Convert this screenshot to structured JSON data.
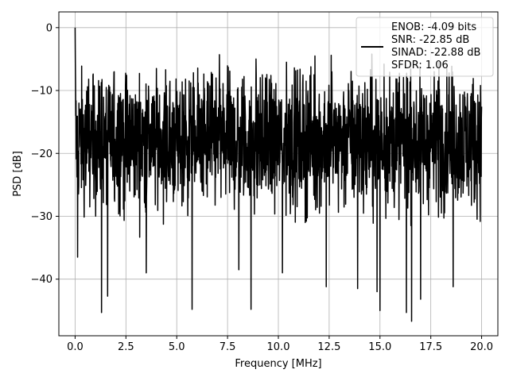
{
  "chart_data": {
    "type": "line",
    "title": "",
    "xlabel": "Frequency [MHz]",
    "ylabel": "PSD [dB]",
    "xlim": [
      -0.8,
      20.8
    ],
    "ylim": [
      -49,
      2.5
    ],
    "x_ticks": [
      0.0,
      2.5,
      5.0,
      7.5,
      10.0,
      12.5,
      15.0,
      17.5,
      20.0
    ],
    "x_tick_labels": [
      "0.0",
      "2.5",
      "5.0",
      "7.5",
      "10.0",
      "12.5",
      "15.0",
      "17.5",
      "20.0"
    ],
    "y_ticks": [
      0,
      -10,
      -20,
      -30,
      -40
    ],
    "y_tick_labels": [
      "0",
      "−10",
      "−20",
      "−30",
      "−40"
    ],
    "grid": true,
    "legend_position": "top-right",
    "line_color": "#000000",
    "series": [
      {
        "name": "ENOB: -4.09 bits\nSNR: -22.85 dB\nSINAD: -22.88 dB\nSFDR: 1.06",
        "legend_lines": [
          "ENOB: -4.09 bits",
          "SNR: -22.85 dB",
          "SINAD: -22.88 dB",
          "SFDR: 1.06"
        ],
        "x_range": [
          0.0,
          20.0
        ],
        "peak": {
          "x": 0.0,
          "y": 0.0
        },
        "envelope": {
          "upper": -7,
          "median": -18,
          "lower": -28
        },
        "minima": [
          {
            "x": 0.12,
            "y": -36.5
          },
          {
            "x": 1.3,
            "y": -45.3
          },
          {
            "x": 1.6,
            "y": -42.7
          },
          {
            "x": 3.5,
            "y": -39.0
          },
          {
            "x": 5.75,
            "y": -44.8
          },
          {
            "x": 8.05,
            "y": -38.5
          },
          {
            "x": 8.65,
            "y": -44.8
          },
          {
            "x": 10.2,
            "y": -39.0
          },
          {
            "x": 12.35,
            "y": -41.2
          },
          {
            "x": 13.9,
            "y": -41.5
          },
          {
            "x": 14.85,
            "y": -42.0
          },
          {
            "x": 15.0,
            "y": -45.0
          },
          {
            "x": 16.3,
            "y": -45.3
          },
          {
            "x": 16.55,
            "y": -46.7
          },
          {
            "x": 17.0,
            "y": -43.2
          },
          {
            "x": 18.6,
            "y": -41.2
          }
        ],
        "maxima": [
          {
            "x": 4.0,
            "y": -6.5
          },
          {
            "x": 7.1,
            "y": -4.3
          },
          {
            "x": 8.9,
            "y": -5.0
          },
          {
            "x": 10.4,
            "y": -5.5
          },
          {
            "x": 11.8,
            "y": -4.5
          },
          {
            "x": 12.6,
            "y": -4.4
          },
          {
            "x": 14.6,
            "y": -4.2
          },
          {
            "x": 15.2,
            "y": -5.8
          },
          {
            "x": 17.9,
            "y": -5.5
          },
          {
            "x": 18.4,
            "y": -7.2
          }
        ]
      }
    ]
  }
}
